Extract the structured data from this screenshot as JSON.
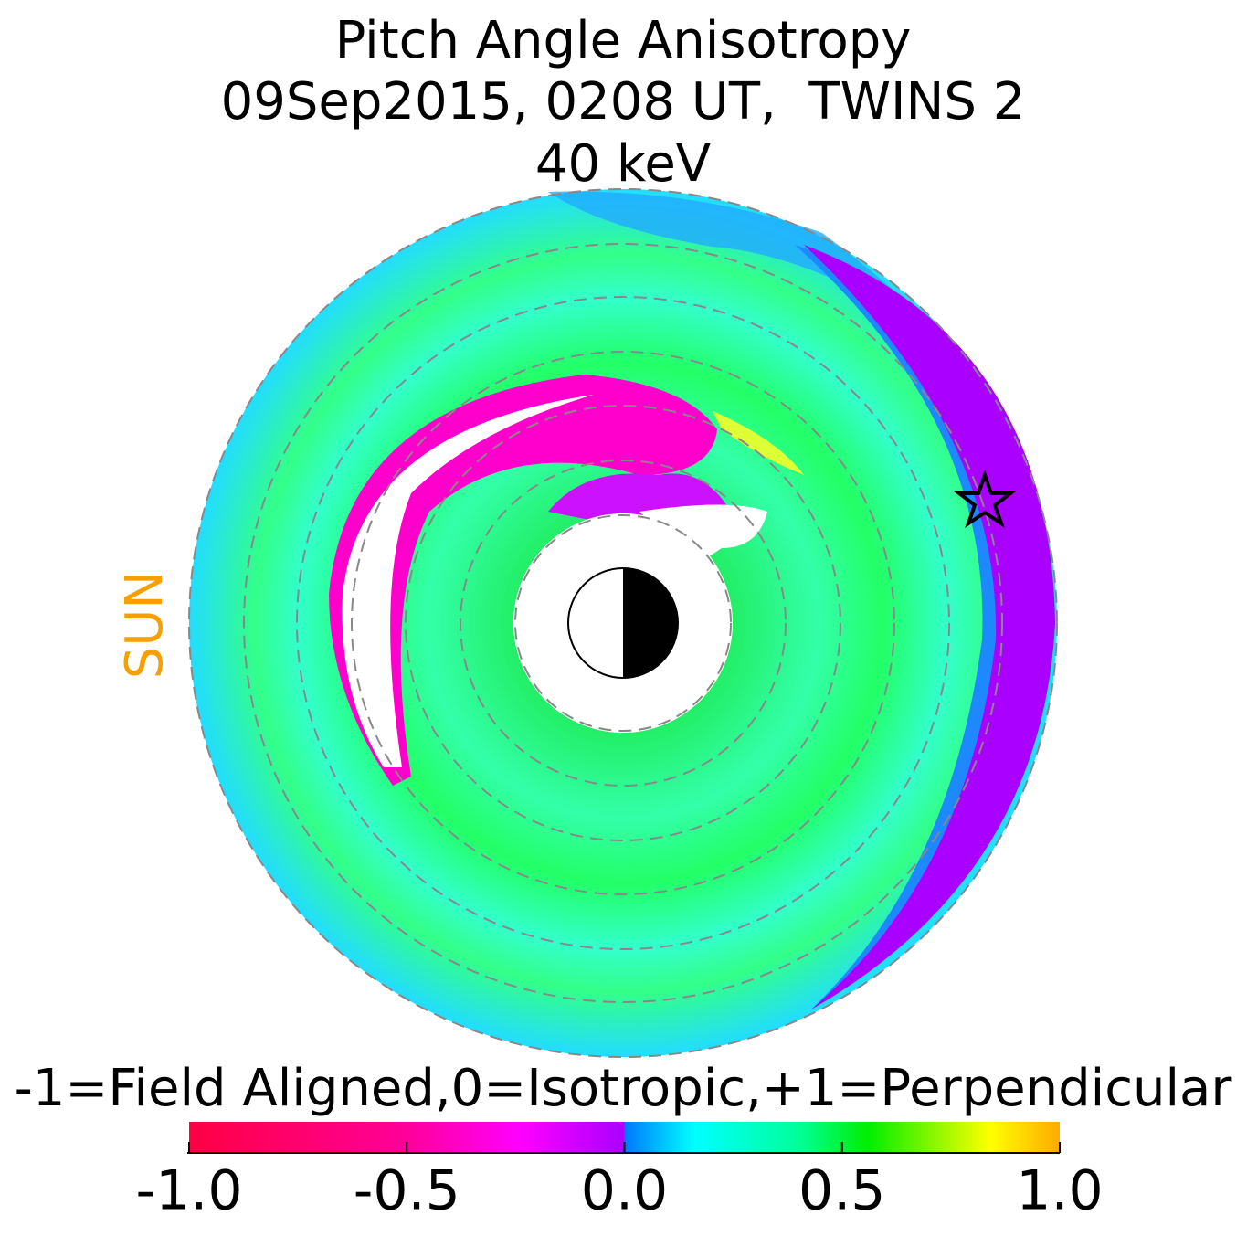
{
  "chart_data": {
    "type": "polar-map",
    "title": [
      "Pitch Angle Anisotropy",
      "09Sep2015, 0208 UT,  TWINS 2",
      "40 keV"
    ],
    "annotation": "SUN",
    "colorbar": {
      "label": "-1=Field Aligned,0=Isotropic,+1=Perpendicular",
      "clim": [
        -1,
        1
      ],
      "ticks": [
        {
          "value": -1,
          "label": "-1.0"
        },
        {
          "value": -0.5,
          "label": "-0.5"
        },
        {
          "value": 0,
          "label": "0.0"
        },
        {
          "value": 0.5,
          "label": "0.5"
        },
        {
          "value": 1,
          "label": "1.0"
        }
      ]
    }
  }
}
